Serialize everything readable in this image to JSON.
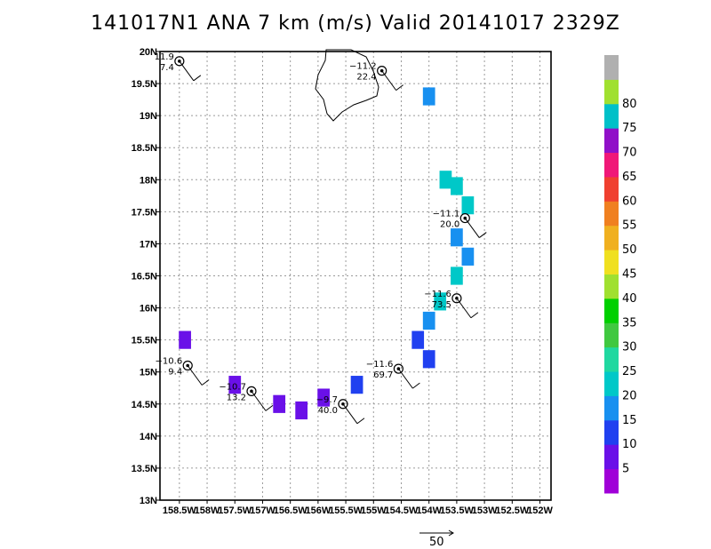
{
  "title": "141017N1 ANA 7 km (m/s) Valid 20141017 2329Z",
  "chart_data": {
    "type": "heatmap",
    "title": "141017N1 ANA 7 km (m/s) Valid 20141017 2329Z",
    "x_ticks": [
      "158.5W",
      "158W",
      "157.5W",
      "157W",
      "156.5W",
      "156W",
      "155.5W",
      "155W",
      "154.5W",
      "154W",
      "153.5W",
      "153W",
      "152.5W",
      "152W"
    ],
    "y_ticks": [
      "20N",
      "19.5N",
      "19N",
      "18.5N",
      "18N",
      "17.5N",
      "17N",
      "16.5N",
      "16N",
      "15.5N",
      "15N",
      "14.5N",
      "14N",
      "13.5N",
      "13N"
    ],
    "xlim": [
      -158.85,
      -151.8
    ],
    "ylim": [
      13.0,
      20.0
    ],
    "grid": true,
    "colorbar": {
      "labels": [
        "5",
        "10",
        "15",
        "20",
        "25",
        "30",
        "35",
        "40",
        "45",
        "50",
        "55",
        "60",
        "65",
        "70",
        "75",
        "80"
      ],
      "colors": [
        "#a000d8",
        "#6a10e8",
        "#2040f0",
        "#1890f0",
        "#00c8c8",
        "#20d8a0",
        "#40c840",
        "#00d000",
        "#a0e030",
        "#f0e020",
        "#f0b020",
        "#f08020",
        "#f04030",
        "#f01878",
        "#9010c8",
        "#00c0c8",
        "#a0e030",
        "#b0b0b0"
      ]
    },
    "stations": [
      {
        "lon": -158.5,
        "lat": 19.85,
        "t": "11.9",
        "v": "7.4"
      },
      {
        "lon": -154.85,
        "lat": 19.7,
        "t": "−11.2",
        "v": "22.4"
      },
      {
        "lon": -153.35,
        "lat": 17.4,
        "t": "−11.1",
        "v": "20.0"
      },
      {
        "lon": -153.5,
        "lat": 16.15,
        "t": "−11.6",
        "v": "73.5"
      },
      {
        "lon": -158.35,
        "lat": 15.1,
        "t": "−10.6",
        "v": "9.4"
      },
      {
        "lon": -154.55,
        "lat": 15.05,
        "t": "−11.6",
        "v": "69.7"
      },
      {
        "lon": -157.2,
        "lat": 14.7,
        "t": "−10.7",
        "v": "13.2"
      },
      {
        "lon": -155.55,
        "lat": 14.5,
        "t": "−9.7",
        "v": "40.0"
      }
    ],
    "cells": [
      {
        "lon": -154.0,
        "lat": 19.3,
        "v": 18
      },
      {
        "lon": -153.7,
        "lat": 18.0,
        "v": 22
      },
      {
        "lon": -153.5,
        "lat": 17.9,
        "v": 22
      },
      {
        "lon": -153.3,
        "lat": 17.6,
        "v": 22
      },
      {
        "lon": -153.5,
        "lat": 17.1,
        "v": 18
      },
      {
        "lon": -153.3,
        "lat": 16.8,
        "v": 18
      },
      {
        "lon": -153.5,
        "lat": 16.5,
        "v": 22
      },
      {
        "lon": -153.8,
        "lat": 16.1,
        "v": 22
      },
      {
        "lon": -154.0,
        "lat": 15.8,
        "v": 15
      },
      {
        "lon": -154.2,
        "lat": 15.5,
        "v": 12
      },
      {
        "lon": -154.0,
        "lat": 15.2,
        "v": 12
      },
      {
        "lon": -158.4,
        "lat": 15.5,
        "v": 5
      },
      {
        "lon": -157.5,
        "lat": 14.8,
        "v": 5
      },
      {
        "lon": -156.7,
        "lat": 14.5,
        "v": 5
      },
      {
        "lon": -156.3,
        "lat": 14.4,
        "v": 5
      },
      {
        "lon": -155.9,
        "lat": 14.6,
        "v": 7
      },
      {
        "lon": -155.3,
        "lat": 14.8,
        "v": 12
      }
    ],
    "scale_vector": {
      "label": "50"
    }
  },
  "scale_label": "50"
}
